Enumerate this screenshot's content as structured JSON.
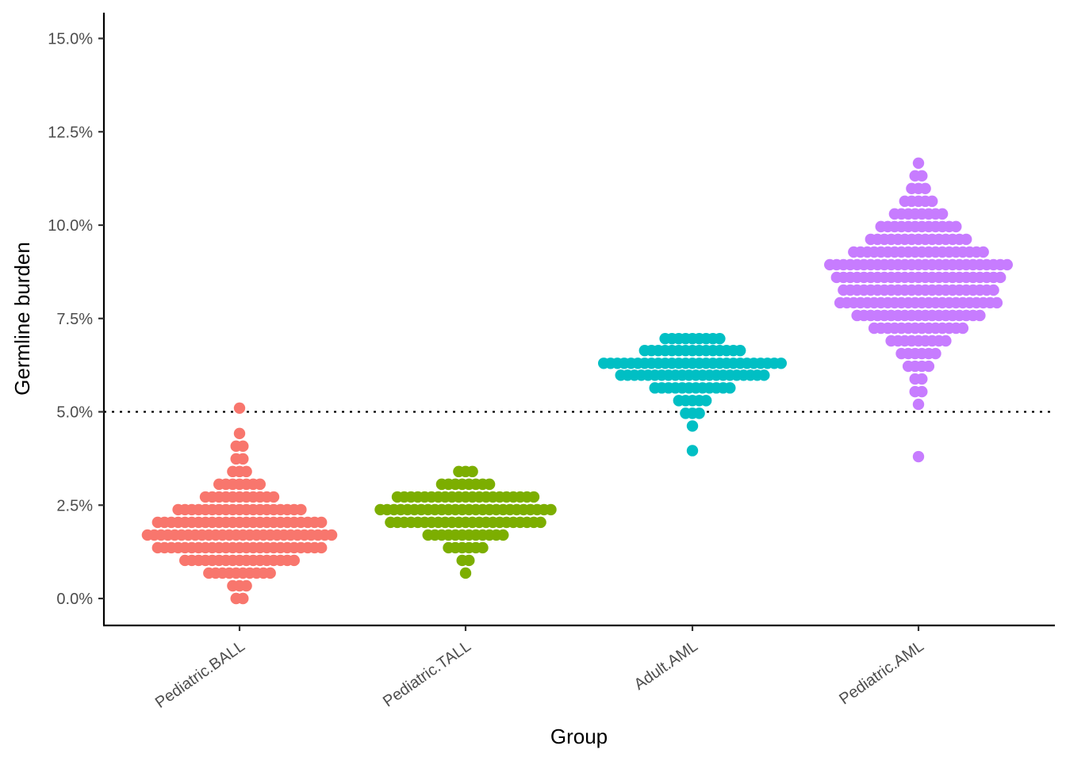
{
  "chart_data": {
    "type": "dotplot",
    "title": "",
    "xlabel": "Group",
    "ylabel": "Germline burden",
    "ylim": [
      -0.7,
      15.7
    ],
    "y_ticks": [
      0,
      2.5,
      5,
      7.5,
      10,
      12.5,
      15
    ],
    "y_tick_labels": [
      "0.0%",
      "2.5%",
      "5.0%",
      "7.5%",
      "10.0%",
      "12.5%",
      "15.0%"
    ],
    "reference_line": {
      "y": 5.0,
      "style": "dotted"
    },
    "grid": false,
    "legend": "none",
    "categories": [
      "Pediatric.BALL",
      "Pediatric.TALL",
      "Adult.AML",
      "Pediatric.AML"
    ],
    "series": [
      {
        "category": "Pediatric.BALL",
        "color": "#F8766D",
        "bins": [
          {
            "y": 0.0,
            "count": 2
          },
          {
            "y": 0.34,
            "count": 3
          },
          {
            "y": 0.68,
            "count": 10
          },
          {
            "y": 1.02,
            "count": 17
          },
          {
            "y": 1.36,
            "count": 25
          },
          {
            "y": 1.7,
            "count": 28
          },
          {
            "y": 2.04,
            "count": 25
          },
          {
            "y": 2.38,
            "count": 19
          },
          {
            "y": 2.72,
            "count": 11
          },
          {
            "y": 3.06,
            "count": 7
          },
          {
            "y": 3.4,
            "count": 3
          },
          {
            "y": 3.74,
            "count": 2
          },
          {
            "y": 4.08,
            "count": 2
          },
          {
            "y": 4.42,
            "count": 1
          },
          {
            "y": 5.1,
            "count": 1
          }
        ]
      },
      {
        "category": "Pediatric.TALL",
        "color": "#7CAE00",
        "bins": [
          {
            "y": 0.68,
            "count": 1
          },
          {
            "y": 1.02,
            "count": 2
          },
          {
            "y": 1.36,
            "count": 6
          },
          {
            "y": 1.7,
            "count": 12
          },
          {
            "y": 2.04,
            "count": 23
          },
          {
            "y": 2.38,
            "count": 26
          },
          {
            "y": 2.72,
            "count": 21
          },
          {
            "y": 3.06,
            "count": 8
          },
          {
            "y": 3.4,
            "count": 3
          }
        ]
      },
      {
        "category": "Adult.AML",
        "color": "#00BFC4",
        "bins": [
          {
            "y": 3.96,
            "count": 1
          },
          {
            "y": 4.62,
            "count": 1
          },
          {
            "y": 4.96,
            "count": 3
          },
          {
            "y": 5.3,
            "count": 5
          },
          {
            "y": 5.64,
            "count": 12
          },
          {
            "y": 5.98,
            "count": 22
          },
          {
            "y": 6.3,
            "count": 27
          },
          {
            "y": 6.64,
            "count": 15
          },
          {
            "y": 6.96,
            "count": 9
          }
        ]
      },
      {
        "category": "Pediatric.AML",
        "color": "#C77CFF",
        "bins": [
          {
            "y": 3.8,
            "count": 1
          },
          {
            "y": 5.2,
            "count": 1
          },
          {
            "y": 5.54,
            "count": 2
          },
          {
            "y": 5.88,
            "count": 2
          },
          {
            "y": 6.22,
            "count": 4
          },
          {
            "y": 6.56,
            "count": 6
          },
          {
            "y": 6.9,
            "count": 9
          },
          {
            "y": 7.24,
            "count": 14
          },
          {
            "y": 7.58,
            "count": 19
          },
          {
            "y": 7.92,
            "count": 24
          },
          {
            "y": 8.26,
            "count": 23
          },
          {
            "y": 8.6,
            "count": 25
          },
          {
            "y": 8.94,
            "count": 27
          },
          {
            "y": 9.28,
            "count": 20
          },
          {
            "y": 9.62,
            "count": 15
          },
          {
            "y": 9.96,
            "count": 12
          },
          {
            "y": 10.3,
            "count": 8
          },
          {
            "y": 10.64,
            "count": 5
          },
          {
            "y": 10.98,
            "count": 3
          },
          {
            "y": 11.32,
            "count": 2
          },
          {
            "y": 11.66,
            "count": 1
          }
        ]
      }
    ]
  }
}
